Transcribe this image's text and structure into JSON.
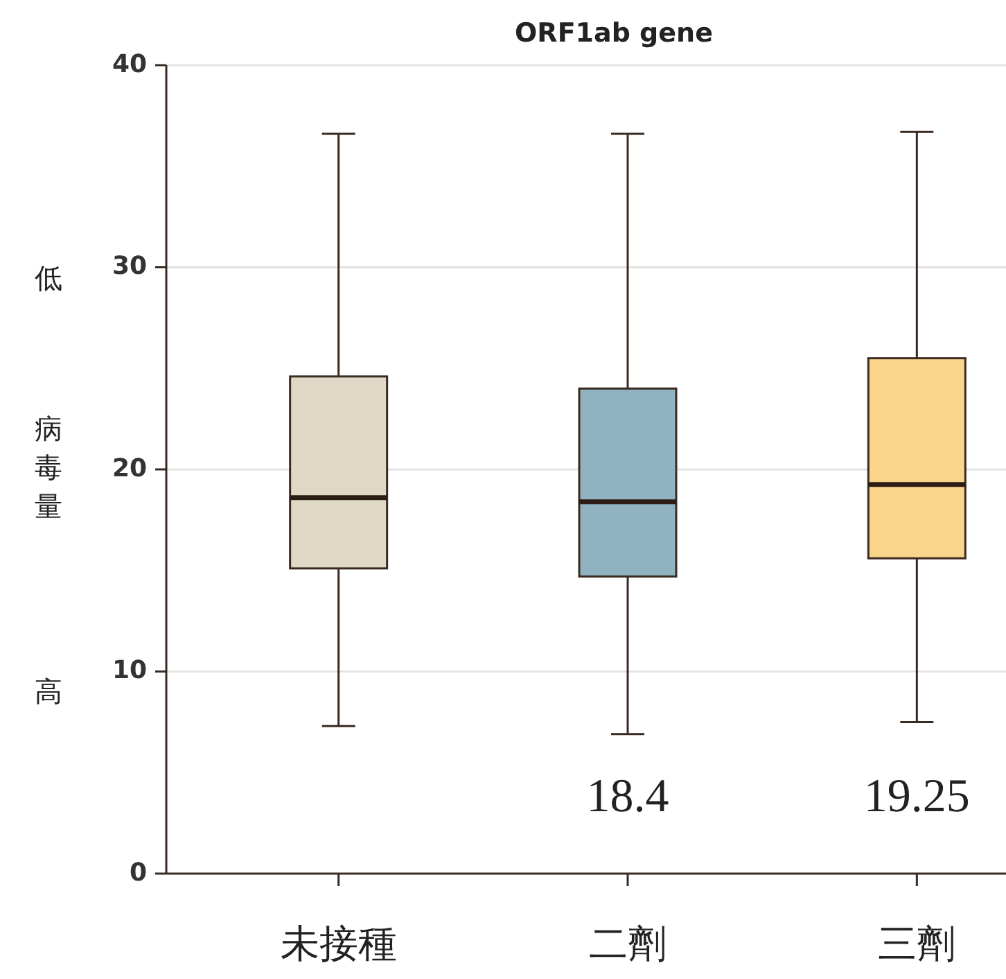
{
  "chart_data": {
    "type": "box",
    "title": "ORF1ab gene",
    "ylabel": "病毒量",
    "categories": [
      "未接種",
      "二劑",
      "三劑"
    ],
    "colors": [
      "#e0d9c6",
      "#91b3c1",
      "#f9d48b"
    ],
    "boxes": [
      {
        "low": 7.3,
        "q1": 15.1,
        "median": 18.6,
        "q3": 24.6,
        "high": 36.6
      },
      {
        "low": 6.9,
        "q1": 14.7,
        "median": 18.4,
        "q3": 24.0,
        "high": 36.6
      },
      {
        "low": 7.5,
        "q1": 15.6,
        "median": 19.25,
        "q3": 25.5,
        "high": 36.7
      }
    ],
    "ylim": [
      0,
      40
    ],
    "yticks": [
      0,
      10,
      20,
      30,
      40
    ],
    "grid": "y",
    "annotations": [
      "低",
      "高",
      "18.4",
      "19.25"
    ]
  }
}
